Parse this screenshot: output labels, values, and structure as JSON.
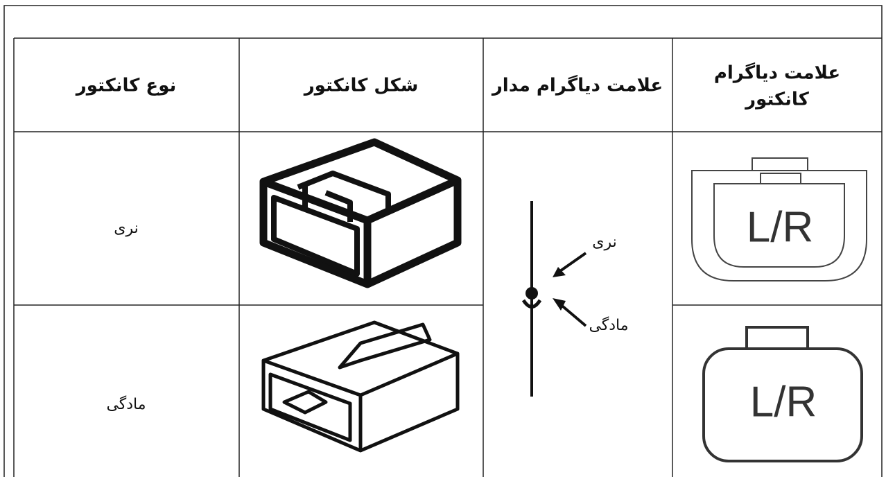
{
  "table": {
    "headers": [
      "نوع کانکتور",
      "شکل کانکتور",
      "علامت دیاگرام مدار",
      [
        "علامت دیاگرام",
        "کانکتور"
      ]
    ],
    "rows": [
      {
        "type": "نری",
        "symbol": "L/R"
      },
      {
        "type": "مادگی",
        "symbol": "L/R"
      }
    ],
    "diagram_labels": {
      "male": "نری",
      "female": "مادگی"
    }
  }
}
